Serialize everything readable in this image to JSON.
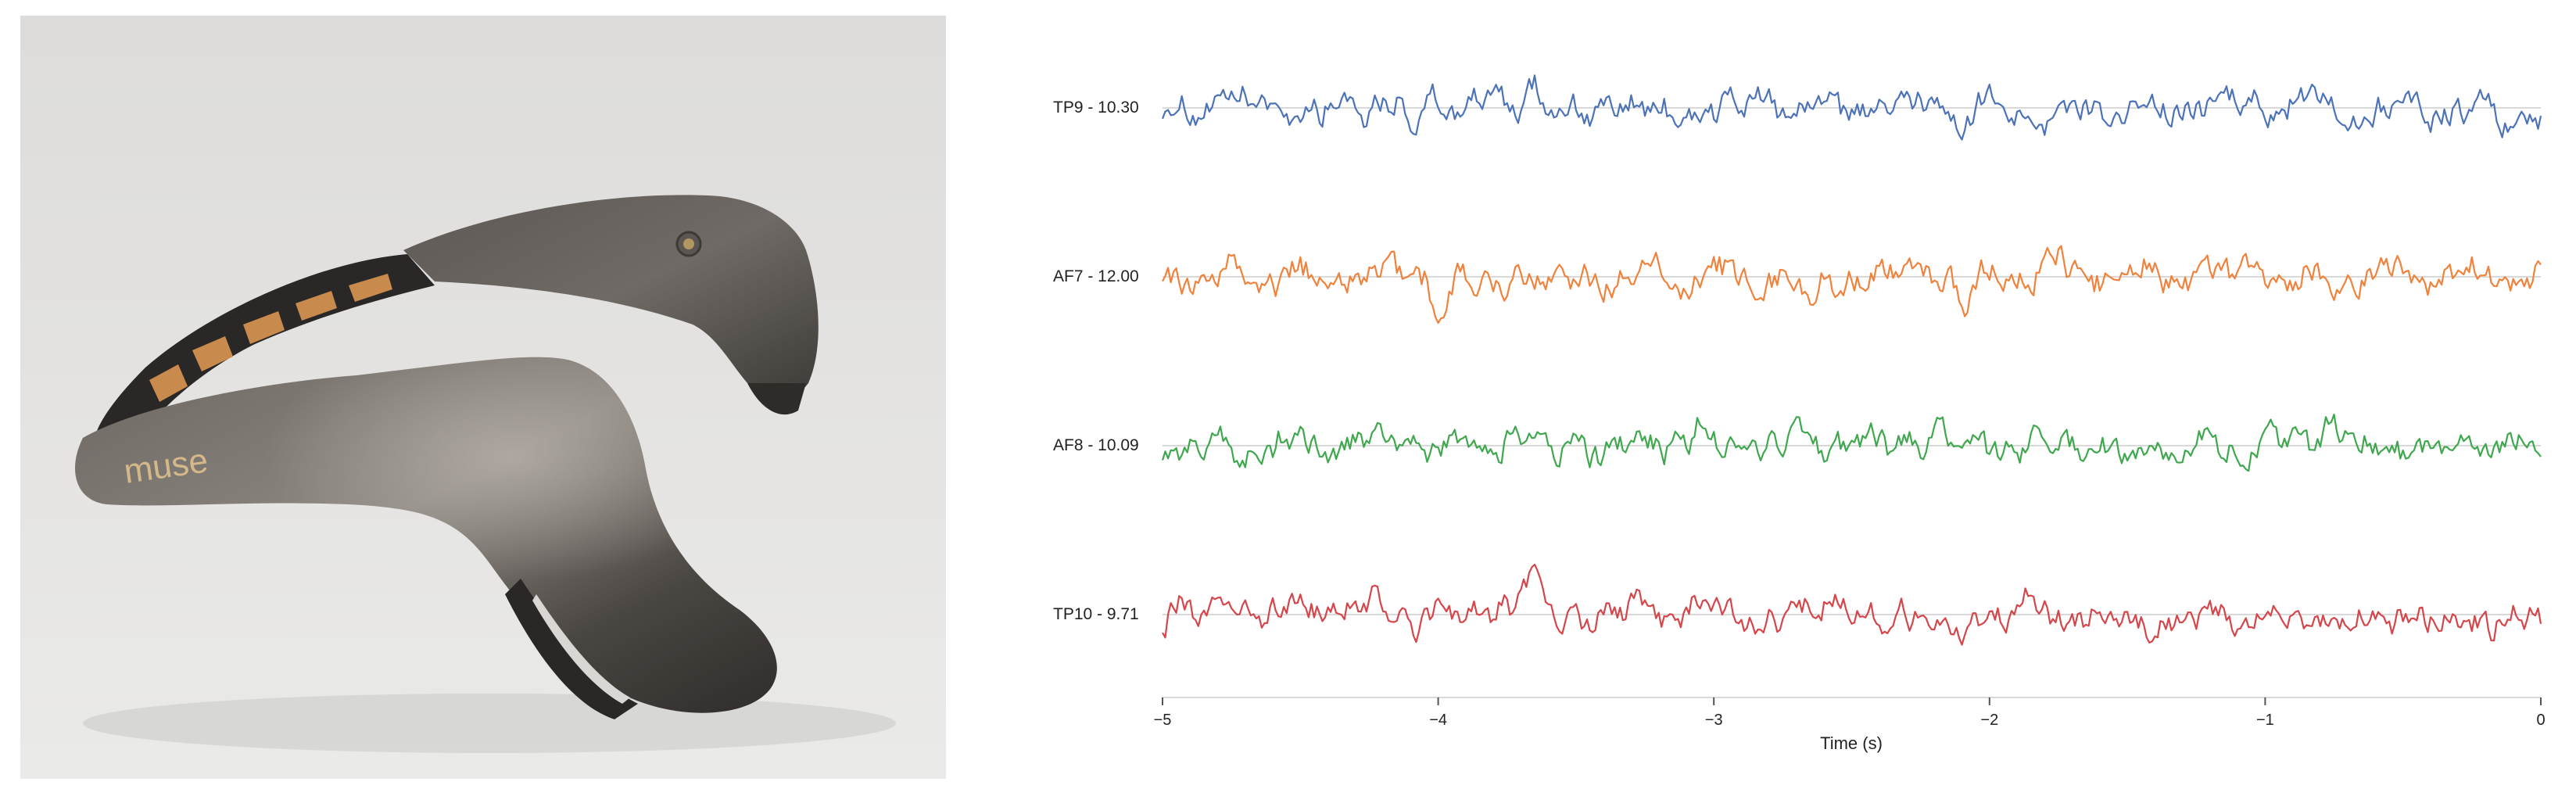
{
  "photo": {
    "subject": "muse-headband",
    "logo_text": "muse",
    "colors": {
      "background": "#e3e2e0",
      "band_shell": "#4d4945",
      "band_highlight": "#8f8a85",
      "pad": "#c98a4d",
      "logo": "#d4b88a"
    }
  },
  "chart_data": {
    "type": "line",
    "xlabel": "Time (s)",
    "xlim": [
      -5,
      0
    ],
    "x_ticks": [
      -5,
      -4,
      -3,
      -2,
      -1,
      0
    ],
    "x_tick_labels": [
      "−5",
      "−4",
      "−3",
      "−2",
      "−1",
      "0"
    ],
    "grid": true,
    "legend": "none",
    "sample_rate_hz": 100,
    "series": [
      {
        "name": "TP9",
        "label": "TP9 - 10.30",
        "baseline": 10.3,
        "color": "#4c72b8",
        "events": [
          {
            "t": -4.32,
            "d": 22
          },
          {
            "t": -4.1,
            "d": -40
          },
          {
            "t": -3.65,
            "d": 28
          },
          {
            "t": -2.1,
            "d": -40
          }
        ]
      },
      {
        "name": "AF7",
        "label": "AF7 - 12.00",
        "baseline": 12.0,
        "color": "#f0823c",
        "events": [
          {
            "t": -4.32,
            "d": 18
          },
          {
            "t": -4.0,
            "d": -45
          },
          {
            "t": -3.22,
            "d": 25
          },
          {
            "t": -2.65,
            "d": -38
          },
          {
            "t": -2.1,
            "d": -35
          },
          {
            "t": -1.75,
            "d": 18
          }
        ]
      },
      {
        "name": "AF8",
        "label": "AF8 - 10.09",
        "baseline": 10.09,
        "color": "#3fa84e",
        "events": [
          {
            "t": -3.05,
            "d": 25
          },
          {
            "t": -3.6,
            "d": -22
          },
          {
            "t": -0.75,
            "d": 18
          }
        ]
      },
      {
        "name": "TP10",
        "label": "TP10 - 9.71",
        "baseline": 9.71,
        "color": "#d5464b",
        "events": [
          {
            "t": -3.66,
            "d": 42
          },
          {
            "t": -4.1,
            "d": -40
          },
          {
            "t": -2.1,
            "d": -45
          }
        ]
      }
    ]
  }
}
